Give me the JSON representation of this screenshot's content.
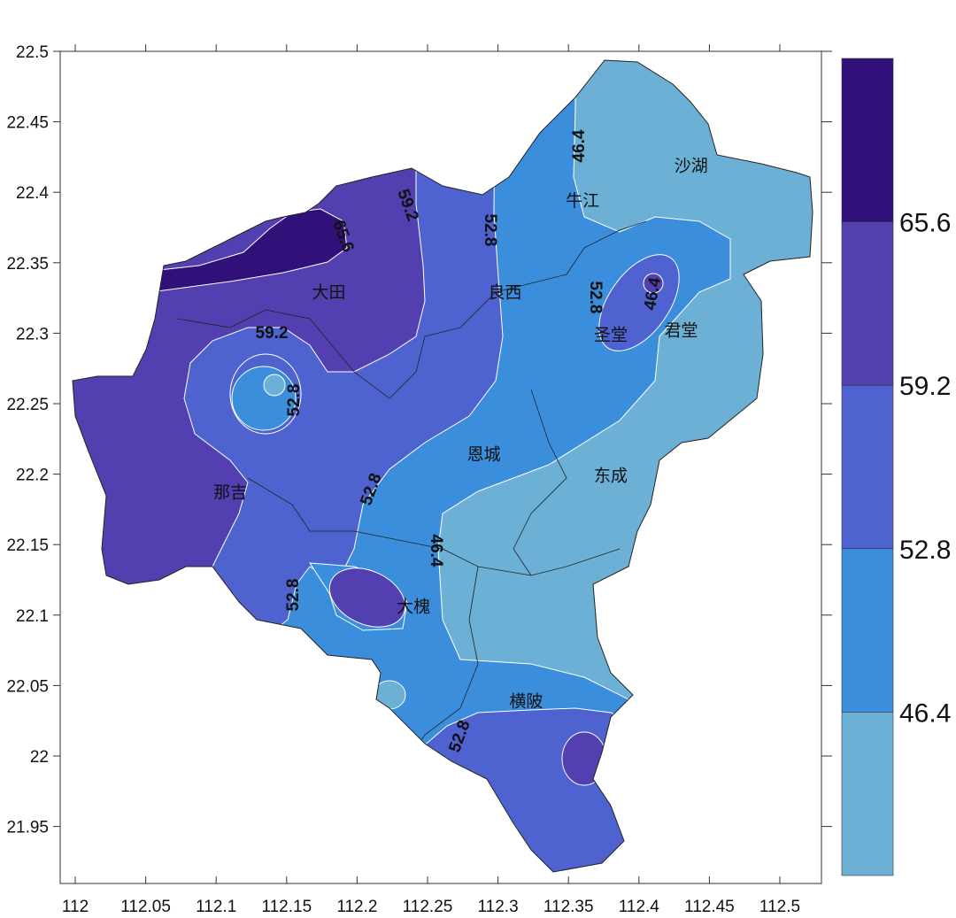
{
  "chart_data": {
    "type": "contour-map",
    "x_axis": {
      "min": 111.99,
      "max": 112.53,
      "ticks": [
        "112",
        "112.05",
        "112.1",
        "112.15",
        "112.2",
        "112.25",
        "112.3",
        "112.35",
        "112.4",
        "112.45",
        "112.5"
      ]
    },
    "y_axis": {
      "min": 21.91,
      "max": 22.5,
      "ticks": [
        "22.5",
        "22.45",
        "22.4",
        "22.35",
        "22.3",
        "22.25",
        "22.2",
        "22.15",
        "22.1",
        "22.05",
        "22",
        "21.95"
      ]
    },
    "colorbar": {
      "levels": [
        "65.6",
        "59.2",
        "52.8",
        "46.4"
      ],
      "colors": [
        "#32107a",
        "#5240b0",
        "#4f63d0",
        "#3a8edb",
        "#6db0d5"
      ]
    },
    "places": [
      {
        "name": "沙湖",
        "lon": 112.437,
        "lat": 22.415
      },
      {
        "name": "牛江",
        "lon": 112.36,
        "lat": 22.39
      },
      {
        "name": "大田",
        "lon": 112.18,
        "lat": 22.325
      },
      {
        "name": "良西",
        "lon": 112.305,
        "lat": 22.325
      },
      {
        "name": "圣堂",
        "lon": 112.38,
        "lat": 22.295
      },
      {
        "name": "君堂",
        "lon": 112.43,
        "lat": 22.298
      },
      {
        "name": "恩城",
        "lon": 112.29,
        "lat": 22.21
      },
      {
        "name": "东成",
        "lon": 112.38,
        "lat": 22.195
      },
      {
        "name": "那吉",
        "lon": 112.11,
        "lat": 22.183
      },
      {
        "name": "大槐",
        "lon": 112.24,
        "lat": 22.102
      },
      {
        "name": "横陂",
        "lon": 112.32,
        "lat": 22.035
      }
    ],
    "contour_labels": [
      "65.6",
      "59.2",
      "52.8",
      "46.4",
      "59.2",
      "52.8",
      "52.8",
      "46.4",
      "52.8",
      "46.4",
      "52.8",
      "52.8"
    ]
  }
}
